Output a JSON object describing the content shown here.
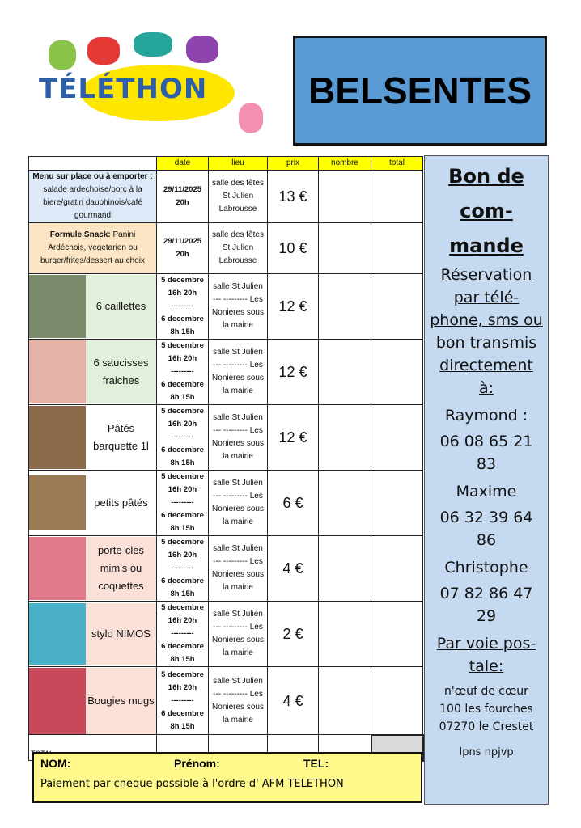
{
  "logo": {
    "text": "TÉLÉTHON"
  },
  "title": "BELSENTES",
  "table": {
    "headers": [
      "",
      "date",
      "lieu",
      "prix",
      "nombre",
      "total"
    ],
    "rows": [
      {
        "label_bold": "Menu sur place ou à emporter :",
        "label": "salade ardechoise/porc à la biere/gratin dauphinois/café gourmand",
        "date": "29/11/2025",
        "time": "20h",
        "lieu": [
          "salle des fêtes",
          "St Julien",
          "Labrousse"
        ],
        "prix": "13 €",
        "bg": "#dde9f6"
      },
      {
        "label_bold": "Formule Snack:",
        "label": "Panini Ardéchois, vegetarien ou burger/frites/dessert au choix",
        "date": "29/11/2025",
        "time": "20h",
        "lieu": [
          "salle des fêtes",
          "St Julien",
          "Labrousse"
        ],
        "prix": "10 €",
        "bg": "#fbe5c4"
      }
    ],
    "products": [
      {
        "label": "6 caillettes",
        "prix": "12 €",
        "bg": "#e2efda",
        "img": "#7a8a6a"
      },
      {
        "label": "6 saucisses fraiches",
        "prix": "12 €",
        "bg": "#e2efda",
        "img": "#e6b3a8"
      },
      {
        "label": "Pâtés barquette 1l",
        "prix": "12 €",
        "bg": "#ffffff",
        "img": "#8a6a4a"
      },
      {
        "label": "petits pâtés",
        "prix": "6 €",
        "bg": "#ffffff",
        "img": "#9a7a55"
      },
      {
        "label": "porte-cles mim's ou coquettes",
        "prix": "4 €",
        "bg": "#fbe0d8",
        "img": "#e07a8a"
      },
      {
        "label": "stylo NIMOS",
        "prix": "2 €",
        "bg": "#fbe0d8",
        "img": "#4ab0c8"
      },
      {
        "label": "Bougies mugs",
        "prix": "4 €",
        "bg": "#fbe0d8",
        "img": "#c84a5a"
      }
    ],
    "product_date": [
      "5 decembre",
      "16h 20h",
      "---------",
      "6 decembre",
      "8h 15h"
    ],
    "product_lieu": [
      "salle St Julien",
      "--- ---------  Les",
      "Nonieres sous",
      "la mairie"
    ],
    "total_label": "TOTAL"
  },
  "sidebar": {
    "title": [
      "Bon de",
      "com-",
      "mande"
    ],
    "reservation": [
      "Réservation",
      "par  télé-",
      "phone, sms ou",
      "bon transmis",
      "directement",
      "à:"
    ],
    "contacts": [
      {
        "name": "Raymond :",
        "phone": "06 08 65 21 83"
      },
      {
        "name": "Maxime",
        "phone": "06 32 39 64 86"
      },
      {
        "name": "Christophe",
        "phone": "07 82 86 47 29"
      }
    ],
    "postal": [
      "Par voie pos-",
      "tale:"
    ],
    "address": [
      "n'œuf de cœur",
      "100 les fourches",
      "07270 le Crestet"
    ],
    "ipns": "Ipns npjvp"
  },
  "footer": {
    "nom": "NOM:",
    "prenom": "Prénom:",
    "tel": "TEL:",
    "payment": "Paiement par cheque possible à l'ordre d' AFM TELETHON"
  }
}
